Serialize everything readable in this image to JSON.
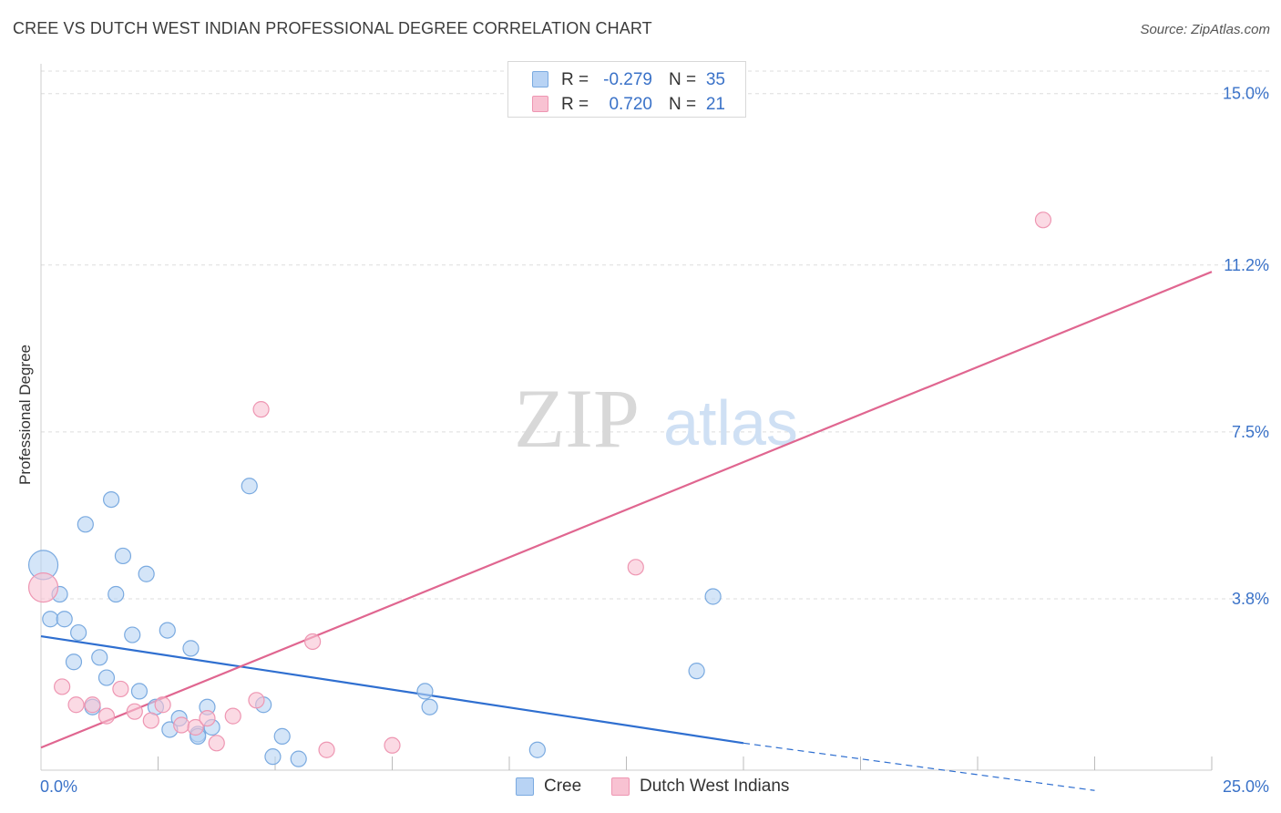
{
  "title": "CREE VS DUTCH WEST INDIAN PROFESSIONAL DEGREE CORRELATION CHART",
  "source": "Source: ZipAtlas.com",
  "watermark": {
    "zip": "ZIP",
    "atlas": "atlas"
  },
  "colors": {
    "cree_fill": "#b8d3f4",
    "cree_stroke": "#7aaae0",
    "cree_line": "#2f6fd0",
    "dutch_fill": "#f8c2d2",
    "dutch_stroke": "#ee96b2",
    "dutch_line": "#e06690",
    "tick_label": "#3a72c8",
    "grid": "#dddddd"
  },
  "legend": {
    "rows": [
      {
        "series": "cree",
        "r_label": "R =",
        "r_value": "-0.279",
        "n_label": "N =",
        "n_value": "35"
      },
      {
        "series": "dutch",
        "r_label": "R =",
        "r_value": "0.720",
        "n_label": "N =",
        "n_value": "21"
      }
    ]
  },
  "bottom_legend": [
    {
      "series": "cree",
      "label": "Cree"
    },
    {
      "series": "dutch",
      "label": "Dutch West Indians"
    }
  ],
  "chart_data": {
    "type": "scatter",
    "title": "CREE VS DUTCH WEST INDIAN PROFESSIONAL DEGREE CORRELATION CHART",
    "xlabel": "",
    "ylabel": "Professional Degree",
    "xlim": [
      0,
      25
    ],
    "ylim": [
      0,
      15.5
    ],
    "x_tick_labels": [
      {
        "value": 0,
        "label": "0.0%"
      },
      {
        "value": 25,
        "label": "25.0%"
      }
    ],
    "y_tick_labels": [
      {
        "value": 3.8,
        "label": "3.8%"
      },
      {
        "value": 7.5,
        "label": "7.5%"
      },
      {
        "value": 11.2,
        "label": "11.2%"
      },
      {
        "value": 15.0,
        "label": "15.0%"
      }
    ],
    "grid": "horizontal dashed",
    "legend_position": "top-center",
    "series": [
      {
        "name": "Cree",
        "key": "cree",
        "R": -0.279,
        "N": 35,
        "trend": {
          "x0": 0,
          "y0": 2.97,
          "x1": 15,
          "y1": 0.6,
          "dashed_to_x": 22.5,
          "dashed_to_y": -0.45
        },
        "points": [
          {
            "x": 0.05,
            "y": 4.55,
            "big": true
          },
          {
            "x": 0.2,
            "y": 3.35
          },
          {
            "x": 0.4,
            "y": 3.9
          },
          {
            "x": 0.5,
            "y": 3.35
          },
          {
            "x": 0.8,
            "y": 3.05
          },
          {
            "x": 0.7,
            "y": 2.4
          },
          {
            "x": 0.95,
            "y": 5.45
          },
          {
            "x": 1.1,
            "y": 1.4
          },
          {
            "x": 1.25,
            "y": 2.5
          },
          {
            "x": 1.4,
            "y": 2.05
          },
          {
            "x": 1.5,
            "y": 6.0
          },
          {
            "x": 1.6,
            "y": 3.9
          },
          {
            "x": 1.75,
            "y": 4.75
          },
          {
            "x": 1.95,
            "y": 3.0
          },
          {
            "x": 2.1,
            "y": 1.75
          },
          {
            "x": 2.25,
            "y": 4.35
          },
          {
            "x": 2.45,
            "y": 1.4
          },
          {
            "x": 2.7,
            "y": 3.1
          },
          {
            "x": 2.75,
            "y": 0.9
          },
          {
            "x": 2.95,
            "y": 1.15
          },
          {
            "x": 3.2,
            "y": 2.7
          },
          {
            "x": 3.35,
            "y": 0.8
          },
          {
            "x": 3.55,
            "y": 1.4
          },
          {
            "x": 3.65,
            "y": 0.95
          },
          {
            "x": 3.35,
            "y": 0.75
          },
          {
            "x": 4.45,
            "y": 6.3
          },
          {
            "x": 4.75,
            "y": 1.45
          },
          {
            "x": 4.95,
            "y": 0.3
          },
          {
            "x": 5.15,
            "y": 0.75
          },
          {
            "x": 5.5,
            "y": 0.25
          },
          {
            "x": 8.2,
            "y": 1.75
          },
          {
            "x": 8.3,
            "y": 1.4
          },
          {
            "x": 10.6,
            "y": 0.45
          },
          {
            "x": 14.0,
            "y": 2.2
          },
          {
            "x": 14.35,
            "y": 3.85
          }
        ]
      },
      {
        "name": "Dutch West Indians",
        "key": "dutch",
        "R": 0.72,
        "N": 21,
        "trend": {
          "x0": 0,
          "y0": 0.5,
          "x1": 25,
          "y1": 11.05
        },
        "points": [
          {
            "x": 0.05,
            "y": 4.05,
            "big": true
          },
          {
            "x": 0.45,
            "y": 1.85
          },
          {
            "x": 0.75,
            "y": 1.45
          },
          {
            "x": 1.1,
            "y": 1.45
          },
          {
            "x": 1.4,
            "y": 1.2
          },
          {
            "x": 1.7,
            "y": 1.8
          },
          {
            "x": 2.0,
            "y": 1.3
          },
          {
            "x": 2.35,
            "y": 1.1
          },
          {
            "x": 2.6,
            "y": 1.45
          },
          {
            "x": 3.0,
            "y": 1.0
          },
          {
            "x": 3.3,
            "y": 0.95
          },
          {
            "x": 3.55,
            "y": 1.15
          },
          {
            "x": 3.75,
            "y": 0.6
          },
          {
            "x": 4.1,
            "y": 1.2
          },
          {
            "x": 4.6,
            "y": 1.55
          },
          {
            "x": 4.7,
            "y": 8.0
          },
          {
            "x": 5.8,
            "y": 2.85
          },
          {
            "x": 6.1,
            "y": 0.45
          },
          {
            "x": 7.5,
            "y": 0.55
          },
          {
            "x": 12.7,
            "y": 4.5
          },
          {
            "x": 21.4,
            "y": 12.2
          }
        ]
      }
    ]
  }
}
